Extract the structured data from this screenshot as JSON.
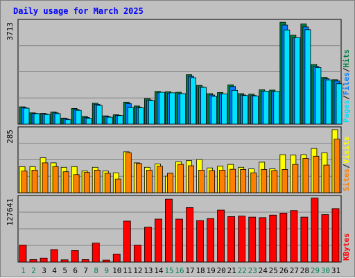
{
  "title": "Daily usage for March 2025",
  "colors": {
    "background": "#c0c0c0",
    "title": "#0000ff",
    "hits": "#008040",
    "files": "#0080ff",
    "pages": "#00e0ff",
    "visits": "#ffff00",
    "sites": "#ff8000",
    "kbytes": "#ff0000",
    "weekend_day": "#00805c",
    "weekday": "#000000"
  },
  "chart_data": {
    "type": "bar",
    "title": "Daily usage for March 2025",
    "categories": [
      "1",
      "2",
      "3",
      "4",
      "5",
      "6",
      "7",
      "8",
      "9",
      "10",
      "11",
      "12",
      "13",
      "14",
      "15",
      "16",
      "17",
      "18",
      "19",
      "20",
      "21",
      "22",
      "23",
      "24",
      "25",
      "26",
      "27",
      "28",
      "29",
      "30",
      "31"
    ],
    "weekend_days": [
      "1",
      "2",
      "8",
      "9",
      "15",
      "16",
      "22",
      "23",
      "29",
      "30"
    ],
    "panels": [
      {
        "id": "hits",
        "max_label": "3713",
        "ymax": 3713,
        "legend": [
          {
            "text": "Hits",
            "color": "#008040"
          },
          {
            "text": "/",
            "color": "#000000"
          },
          {
            "text": "Files",
            "color": "#0080ff"
          },
          {
            "text": "/",
            "color": "#000000"
          },
          {
            "text": "Pages",
            "color": "#00e0ff"
          }
        ],
        "series": [
          {
            "name": "Hits",
            "color": "#008040",
            "values": [
              630,
              410,
              390,
              440,
              220,
              570,
              280,
              760,
              300,
              340,
              800,
              660,
              930,
              1190,
              1180,
              1160,
              1800,
              1410,
              1110,
              1150,
              1430,
              1110,
              1090,
              1250,
              1240,
              3710,
              3240,
              3650,
              2170,
              1700,
              1620
            ]
          },
          {
            "name": "Files",
            "color": "#0080ff",
            "values": [
              600,
              390,
              370,
              410,
              190,
              530,
              240,
              720,
              270,
              320,
              750,
              610,
              880,
              1140,
              1130,
              1110,
              1740,
              1350,
              1060,
              1100,
              1370,
              1060,
              1040,
              1200,
              1190,
              3610,
              3140,
              3540,
              2100,
              1650,
              1570
            ]
          },
          {
            "name": "Pages",
            "color": "#00e0ff",
            "values": [
              580,
              380,
              350,
              380,
              160,
              500,
              210,
              680,
              250,
              310,
              600,
              590,
              860,
              1160,
              1140,
              1110,
              1690,
              1340,
              1010,
              1100,
              1230,
              1040,
              1020,
              1200,
              1190,
              3430,
              3150,
              3440,
              2060,
              1610,
              1470
            ]
          }
        ]
      },
      {
        "id": "visits",
        "max_label": "285",
        "ymax": 285,
        "legend": [
          {
            "text": "Visits",
            "color": "#ffff00"
          },
          {
            "text": "/",
            "color": "#000000"
          },
          {
            "text": "Sites",
            "color": "#ff8000"
          }
        ],
        "series": [
          {
            "name": "Visits",
            "color": "#ffff00",
            "values": [
              118,
              118,
              158,
              135,
              115,
              118,
              98,
              115,
              98,
              90,
              185,
              135,
              115,
              130,
              75,
              140,
              145,
              150,
              112,
              120,
              128,
              115,
              108,
              138,
              108,
              172,
              170,
              172,
              200,
              180,
              285
            ]
          },
          {
            "name": "Sites",
            "color": "#ff8000",
            "values": [
              98,
              102,
              135,
              118,
              95,
              82,
              92,
              102,
              88,
              62,
              180,
              132,
              102,
              120,
              88,
              128,
              122,
              102,
              100,
              102,
              106,
              105,
              90,
              105,
              100,
              105,
              128,
              155,
              165,
              125,
              242
            ]
          }
        ]
      },
      {
        "id": "kbytes",
        "max_label": "127641",
        "ymax": 127641,
        "legend": [
          {
            "text": "KBytes",
            "color": "#ff0000"
          }
        ],
        "series": [
          {
            "name": "KBytes",
            "color": "#ff0000",
            "values": [
              34000,
              5000,
              8000,
              25000,
              4500,
              23000,
              5000,
              38000,
              4000,
              16000,
              82000,
              34000,
              70000,
              86000,
              126000,
              86000,
              109000,
              83000,
              87000,
              104000,
              91000,
              92000,
              90000,
              89000,
              94000,
              98000,
              103000,
              90000,
              128000,
              95000,
              107000
            ]
          }
        ]
      }
    ]
  }
}
